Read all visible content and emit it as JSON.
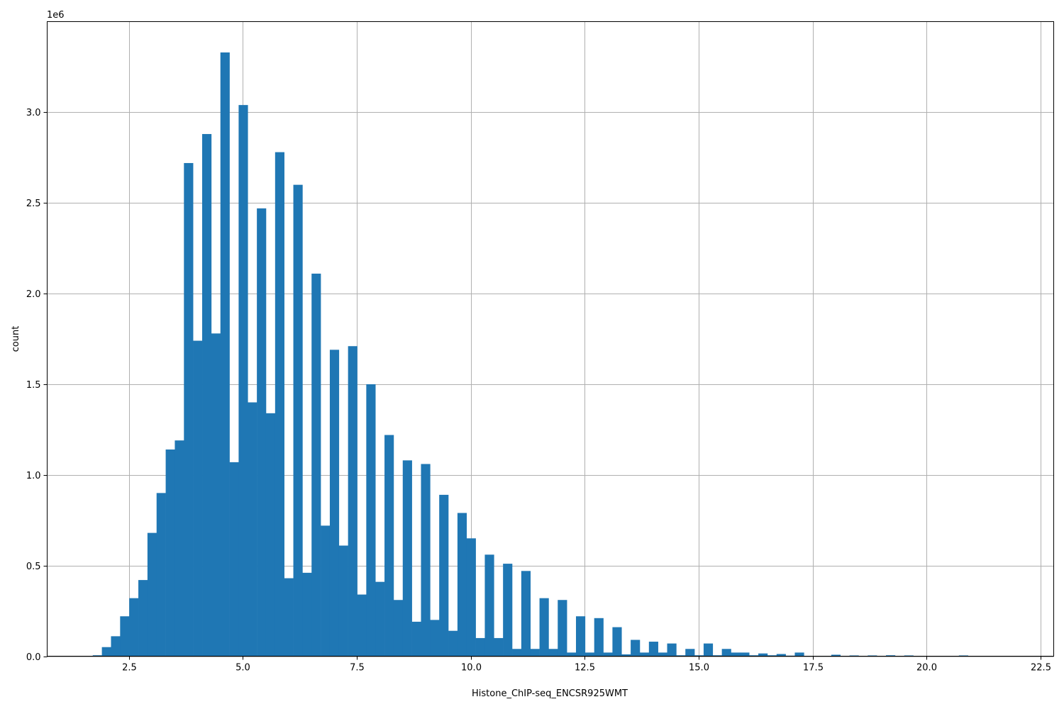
{
  "chart_data": {
    "type": "bar",
    "subtype": "histogram",
    "title": "",
    "xlabel": "Histone_ChIP-seq_ENCSR925WMT",
    "ylabel": "count",
    "y_offset_label": "1e6",
    "y_multiplier": 1000000,
    "xlim": [
      0.71,
      22.79
    ],
    "ylim": [
      0,
      3.5
    ],
    "xticks": [
      2.5,
      5.0,
      7.5,
      10.0,
      12.5,
      15.0,
      17.5,
      20.0,
      22.5
    ],
    "xtick_labels": [
      "2.5",
      "5.0",
      "7.5",
      "10.0",
      "12.5",
      "15.0",
      "17.5",
      "20.0",
      "22.5"
    ],
    "yticks": [
      0.0,
      0.5,
      1.0,
      1.5,
      2.0,
      2.5,
      3.0
    ],
    "ytick_labels": [
      "0.0",
      "0.5",
      "1.0",
      "1.5",
      "2.0",
      "2.5",
      "3.0"
    ],
    "grid": true,
    "bar_color": "#1f77b4",
    "bin_start": 1.71,
    "bin_width": 0.2,
    "values": [
      0.005,
      0.05,
      0.11,
      0.22,
      0.32,
      0.42,
      0.68,
      0.9,
      1.14,
      1.19,
      2.72,
      1.74,
      2.88,
      1.78,
      3.33,
      1.07,
      3.04,
      1.4,
      2.47,
      1.34,
      2.78,
      0.43,
      2.6,
      0.46,
      2.11,
      0.72,
      1.69,
      0.61,
      1.71,
      0.34,
      1.5,
      0.41,
      1.22,
      0.31,
      1.08,
      0.19,
      1.06,
      0.2,
      0.89,
      0.14,
      0.79,
      0.65,
      0.1,
      0.56,
      0.1,
      0.51,
      0.04,
      0.47,
      0.04,
      0.32,
      0.04,
      0.31,
      0.02,
      0.22,
      0.02,
      0.21,
      0.02,
      0.16,
      0.01,
      0.09,
      0.02,
      0.08,
      0.02,
      0.07,
      0.005,
      0.04,
      0.005,
      0.07,
      0.005,
      0.04,
      0.02,
      0.02,
      0.005,
      0.015,
      0.005,
      0.012,
      0.003,
      0.02,
      0.002,
      0.002,
      0.002,
      0.008,
      0.002,
      0.004,
      0.002,
      0.004,
      0.002,
      0.005,
      0.002,
      0.004,
      0.001,
      0.001,
      0.001,
      0.001,
      0.001,
      0.004,
      0.001,
      0.001,
      0.001,
      0.001,
      0.001,
      0.001
    ]
  }
}
